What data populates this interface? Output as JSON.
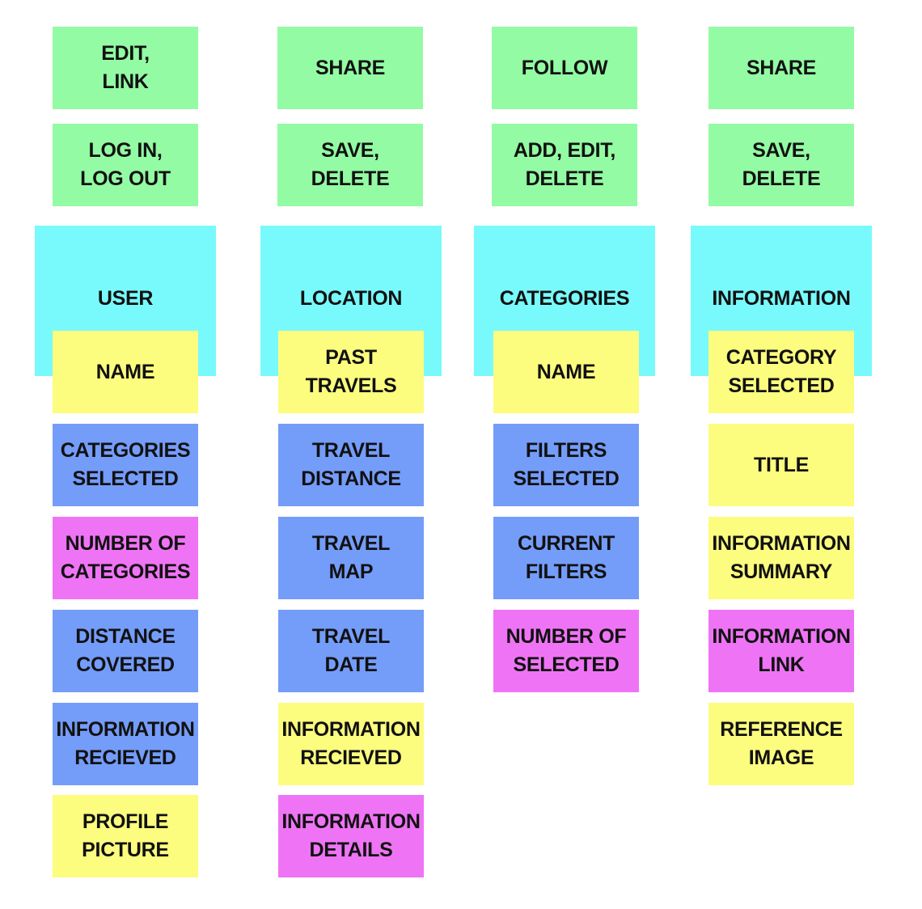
{
  "colors": {
    "action": "#93fba3",
    "entity": "#78fafc",
    "attribute_yellow": "#fcfc7f",
    "attribute_blue": "#749cf9",
    "attribute_pink": "#ef74f5"
  },
  "columns": [
    {
      "actions": [
        "EDIT,\nLINK",
        "LOG IN,\nLOG OUT"
      ],
      "entity": "USER",
      "attributes": [
        "NAME",
        "CATEGORIES\nSELECTED",
        "NUMBER OF\nCATEGORIES",
        "DISTANCE\nCOVERED",
        "INFORMATION\nRECIEVED",
        "PROFILE\nPICTURE"
      ]
    },
    {
      "actions": [
        "SHARE",
        "SAVE,\nDELETE"
      ],
      "entity": "LOCATION",
      "attributes": [
        "PAST\nTRAVELS",
        "TRAVEL\nDISTANCE",
        "TRAVEL\nMAP",
        "TRAVEL\nDATE",
        "INFORMATION\nRECIEVED",
        "INFORMATION\nDETAILS"
      ]
    },
    {
      "actions": [
        "FOLLOW",
        "ADD, EDIT,\nDELETE"
      ],
      "entity": "CATEGORIES",
      "attributes": [
        "NAME",
        "FILTERS\nSELECTED",
        "CURRENT\nFILTERS",
        "NUMBER OF\nSELECTED"
      ]
    },
    {
      "actions": [
        "SHARE",
        "SAVE,\nDELETE"
      ],
      "entity": "INFORMATION",
      "attributes": [
        "CATEGORY\nSELECTED",
        "TITLE",
        "INFORMATION\nSUMMARY",
        "INFORMATION\nLINK",
        "REFERENCE\nIMAGE"
      ]
    }
  ]
}
